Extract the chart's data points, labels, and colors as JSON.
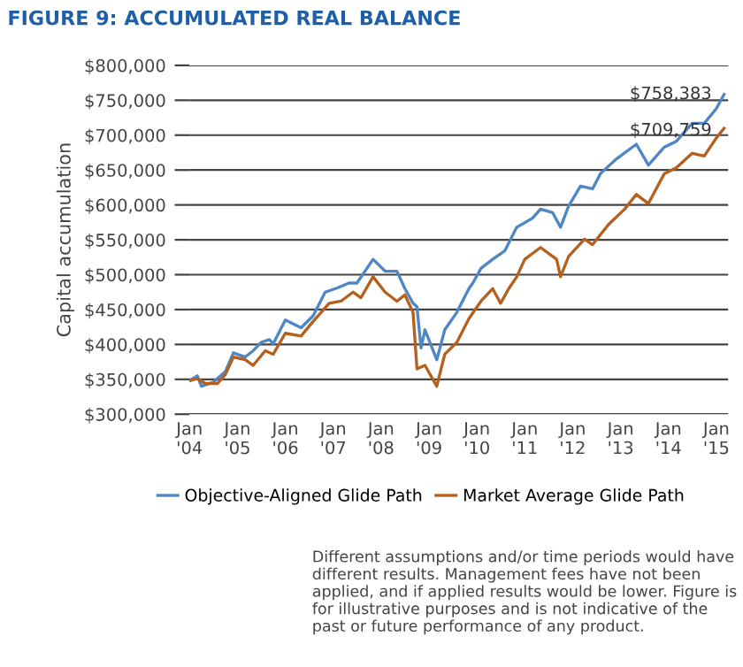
{
  "chart_data": {
    "type": "line",
    "title": "FIGURE 9: ACCUMULATED REAL BALANCE",
    "ylabel": "Capital accumulation",
    "xlim": [
      "2004-01",
      "2015-04"
    ],
    "xticks": [
      {
        "value": "2004-01",
        "label": "Jan\n'04"
      },
      {
        "value": "2005-01",
        "label": "Jan\n'05"
      },
      {
        "value": "2006-01",
        "label": "Jan\n'06"
      },
      {
        "value": "2007-01",
        "label": "Jan\n'07"
      },
      {
        "value": "2008-01",
        "label": "Jan\n'08"
      },
      {
        "value": "2009-01",
        "label": "Jan\n'09"
      },
      {
        "value": "2010-01",
        "label": "Jan\n'10"
      },
      {
        "value": "2011-01",
        "label": "Jan\n'11"
      },
      {
        "value": "2012-01",
        "label": "Jan\n'12"
      },
      {
        "value": "2013-01",
        "label": "Jan\n'13"
      },
      {
        "value": "2014-01",
        "label": "Jan\n'14"
      },
      {
        "value": "2015-01",
        "label": "Jan\n'15"
      }
    ],
    "ylim": [
      300000,
      800000
    ],
    "yticks": [
      {
        "value": 300000,
        "label": "$300,000"
      },
      {
        "value": 350000,
        "label": "$350,000"
      },
      {
        "value": 400000,
        "label": "$400,000"
      },
      {
        "value": 450000,
        "label": "$450,000"
      },
      {
        "value": 500000,
        "label": "$500,000"
      },
      {
        "value": 550000,
        "label": "$550,000"
      },
      {
        "value": 600000,
        "label": "$600,000"
      },
      {
        "value": 650000,
        "label": "$650,000"
      },
      {
        "value": 700000,
        "label": "$700,000"
      },
      {
        "value": 750000,
        "label": "$750,000"
      },
      {
        "value": 800000,
        "label": "$800,000"
      }
    ],
    "grid": "y",
    "legend": "bottom",
    "marker": "none",
    "line_style": "solid",
    "series": [
      {
        "name": "Objective-Aligned Glide Path",
        "color": "#4f86c6",
        "x": [
          "2004-01",
          "2004-03",
          "2004-04",
          "2004-07",
          "2004-10",
          "2004-12",
          "2005-03",
          "2005-05",
          "2005-07",
          "2005-09",
          "2005-10",
          "2006-01",
          "2006-05",
          "2006-08",
          "2006-11",
          "2007-02",
          "2007-05",
          "2007-07",
          "2007-11",
          "2008-02",
          "2008-05",
          "2008-07",
          "2008-09",
          "2008-10",
          "2008-11",
          "2008-12",
          "2009-03",
          "2009-05",
          "2009-08",
          "2009-11",
          "2009-12",
          "2010-02",
          "2010-05",
          "2010-08",
          "2010-11",
          "2011-03",
          "2011-05",
          "2011-08",
          "2011-10",
          "2011-12",
          "2012-03",
          "2012-06",
          "2012-08",
          "2012-12",
          "2013-05",
          "2013-08",
          "2013-12",
          "2014-03",
          "2014-07",
          "2014-10",
          "2015-01",
          "2015-03"
        ],
        "values": [
          348000,
          355000,
          340000,
          346000,
          361000,
          388000,
          382000,
          391000,
          403000,
          407000,
          401000,
          435000,
          424000,
          441000,
          475000,
          481000,
          488000,
          488000,
          522000,
          505000,
          505000,
          480000,
          459000,
          454000,
          395000,
          421000,
          378000,
          421000,
          446000,
          480000,
          488000,
          509000,
          522000,
          534000,
          568000,
          581000,
          594000,
          589000,
          568000,
          598000,
          627000,
          623000,
          645000,
          666000,
          687000,
          657000,
          683000,
          691000,
          717000,
          717000,
          738000,
          758383
        ]
      },
      {
        "name": "Market Average Glide Path",
        "color": "#b5601e",
        "x": [
          "2004-01",
          "2004-03",
          "2004-05",
          "2004-08",
          "2004-10",
          "2004-12",
          "2005-03",
          "2005-05",
          "2005-08",
          "2005-10",
          "2006-01",
          "2006-05",
          "2006-08",
          "2006-12",
          "2007-03",
          "2007-06",
          "2007-08",
          "2007-11",
          "2008-02",
          "2008-05",
          "2008-07",
          "2008-09",
          "2008-10",
          "2008-12",
          "2009-03",
          "2009-05",
          "2009-08",
          "2009-11",
          "2010-02",
          "2010-05",
          "2010-07",
          "2010-09",
          "2010-11",
          "2011-01",
          "2011-05",
          "2011-09",
          "2011-10",
          "2011-12",
          "2012-04",
          "2012-06",
          "2012-10",
          "2013-02",
          "2013-05",
          "2013-08",
          "2013-12",
          "2014-03",
          "2014-07",
          "2014-10",
          "2015-01",
          "2015-03"
        ],
        "values": [
          348000,
          351000,
          344000,
          344000,
          357000,
          382000,
          378000,
          370000,
          391000,
          386000,
          416000,
          412000,
          433000,
          459000,
          462000,
          475000,
          467000,
          497000,
          475000,
          462000,
          471000,
          446000,
          365000,
          370000,
          340000,
          386000,
          403000,
          437000,
          462000,
          480000,
          459000,
          480000,
          497000,
          522000,
          539000,
          522000,
          497000,
          526000,
          551000,
          543000,
          572000,
          594000,
          615000,
          602000,
          645000,
          653000,
          674000,
          670000,
          696000,
          709759
        ]
      }
    ],
    "annotations": [
      {
        "text": "$758,383",
        "x": "2015-03",
        "y": 758383
      },
      {
        "text": "$709,759",
        "x": "2015-03",
        "y": 709759
      },
      "Different assumptions and/or time periods would have different results. Management fees have not been applied, and if applied results would be lower. Figure is for illustrative purposes and is not indicative of the past or future performance of any product."
    ]
  }
}
